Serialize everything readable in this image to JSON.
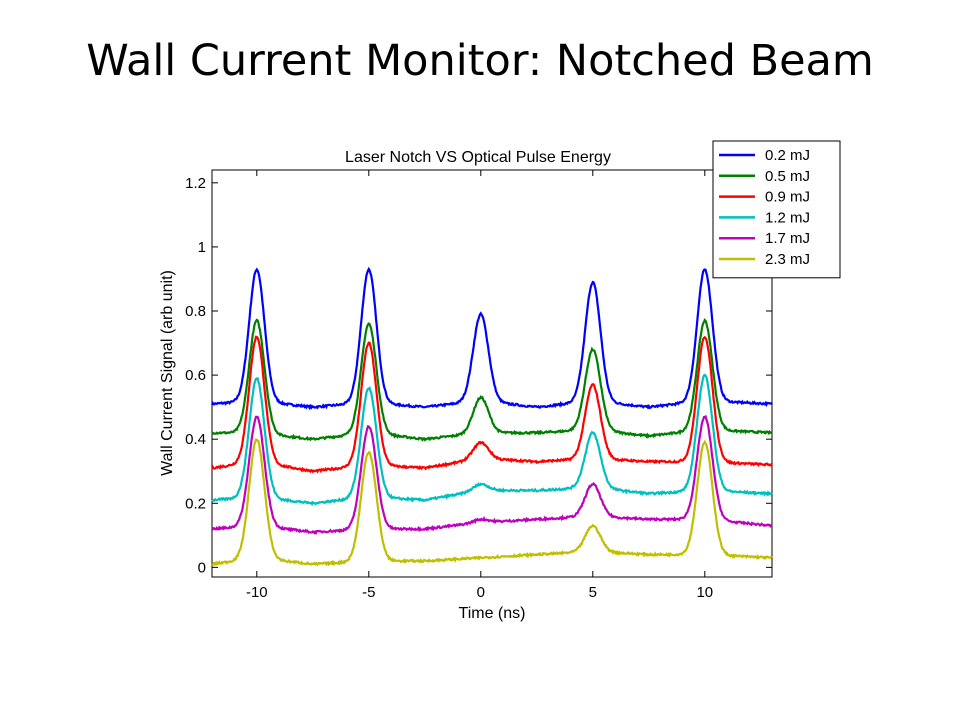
{
  "slide": {
    "title": "Wall Current Monitor: Notched Beam"
  },
  "chart_data": {
    "type": "line",
    "title": "Laser Notch VS Optical Pulse Energy",
    "xlabel": "Time (ns)",
    "ylabel": "Wall Current Signal (arb unit)",
    "xlim": [
      -12,
      13
    ],
    "ylim": [
      -0.03,
      1.24
    ],
    "xticks": [
      -10,
      -5,
      0,
      5,
      10
    ],
    "yticks": [
      0,
      0.2,
      0.4,
      0.6,
      0.8,
      1,
      1.2
    ],
    "grid": false,
    "legend_position": "top-right",
    "peak_times_ns": [
      -10,
      -5,
      0,
      5,
      10
    ],
    "series": [
      {
        "name": "0.2 mJ",
        "color": "#0000ff",
        "baseline": [
          [
            -12,
            0.51
          ],
          [
            -10,
            0.52
          ],
          [
            -7.5,
            0.5
          ],
          [
            -5,
            0.515
          ],
          [
            -2.5,
            0.5
          ],
          [
            0,
            0.52
          ],
          [
            2.5,
            0.5
          ],
          [
            5,
            0.52
          ],
          [
            7.5,
            0.5
          ],
          [
            10,
            0.52
          ],
          [
            13,
            0.51
          ]
        ],
        "peak_heights": [
          0.93,
          0.93,
          0.79,
          0.89,
          0.93
        ]
      },
      {
        "name": "0.5 mJ",
        "color": "#008000",
        "baseline": [
          [
            -12,
            0.42
          ],
          [
            -10,
            0.42
          ],
          [
            -7.5,
            0.4
          ],
          [
            -5,
            0.42
          ],
          [
            -2.5,
            0.4
          ],
          [
            0,
            0.42
          ],
          [
            2.5,
            0.42
          ],
          [
            5,
            0.43
          ],
          [
            7.5,
            0.41
          ],
          [
            10,
            0.43
          ],
          [
            13,
            0.42
          ]
        ],
        "peak_heights": [
          0.77,
          0.76,
          0.53,
          0.68,
          0.77
        ]
      },
      {
        "name": "0.9 mJ",
        "color": "#ff0000",
        "baseline": [
          [
            -12,
            0.31
          ],
          [
            -10,
            0.33
          ],
          [
            -7.5,
            0.3
          ],
          [
            -5,
            0.32
          ],
          [
            -2.5,
            0.31
          ],
          [
            0,
            0.34
          ],
          [
            2.5,
            0.33
          ],
          [
            5,
            0.34
          ],
          [
            7.5,
            0.33
          ],
          [
            10,
            0.33
          ],
          [
            13,
            0.32
          ]
        ],
        "peak_heights": [
          0.72,
          0.7,
          0.39,
          0.57,
          0.72
        ]
      },
      {
        "name": "1.2 mJ",
        "color": "#00bfbf",
        "baseline": [
          [
            -12,
            0.21
          ],
          [
            -10,
            0.22
          ],
          [
            -7.5,
            0.2
          ],
          [
            -5,
            0.22
          ],
          [
            -2.5,
            0.21
          ],
          [
            0,
            0.24
          ],
          [
            2.5,
            0.24
          ],
          [
            5,
            0.25
          ],
          [
            7.5,
            0.23
          ],
          [
            10,
            0.24
          ],
          [
            13,
            0.23
          ]
        ],
        "peak_heights": [
          0.59,
          0.56,
          0.26,
          0.42,
          0.6
        ]
      },
      {
        "name": "1.7 mJ",
        "color": "#bf00bf",
        "baseline": [
          [
            -12,
            0.12
          ],
          [
            -10,
            0.13
          ],
          [
            -7.5,
            0.11
          ],
          [
            -5,
            0.12
          ],
          [
            -2.5,
            0.12
          ],
          [
            0,
            0.14
          ],
          [
            2.5,
            0.15
          ],
          [
            5,
            0.16
          ],
          [
            7.5,
            0.15
          ],
          [
            10,
            0.15
          ],
          [
            13,
            0.13
          ]
        ],
        "peak_heights": [
          0.47,
          0.44,
          0.15,
          0.26,
          0.47
        ]
      },
      {
        "name": "2.3 mJ",
        "color": "#bfbf00",
        "baseline": [
          [
            -12,
            0.01
          ],
          [
            -10,
            0.03
          ],
          [
            -7.5,
            0.01
          ],
          [
            -5,
            0.02
          ],
          [
            -2.5,
            0.02
          ],
          [
            0,
            0.03
          ],
          [
            2.5,
            0.04
          ],
          [
            5,
            0.05
          ],
          [
            7.5,
            0.04
          ],
          [
            10,
            0.04
          ],
          [
            13,
            0.03
          ]
        ],
        "peak_heights": [
          0.4,
          0.36,
          0.03,
          0.13,
          0.39
        ]
      }
    ]
  }
}
